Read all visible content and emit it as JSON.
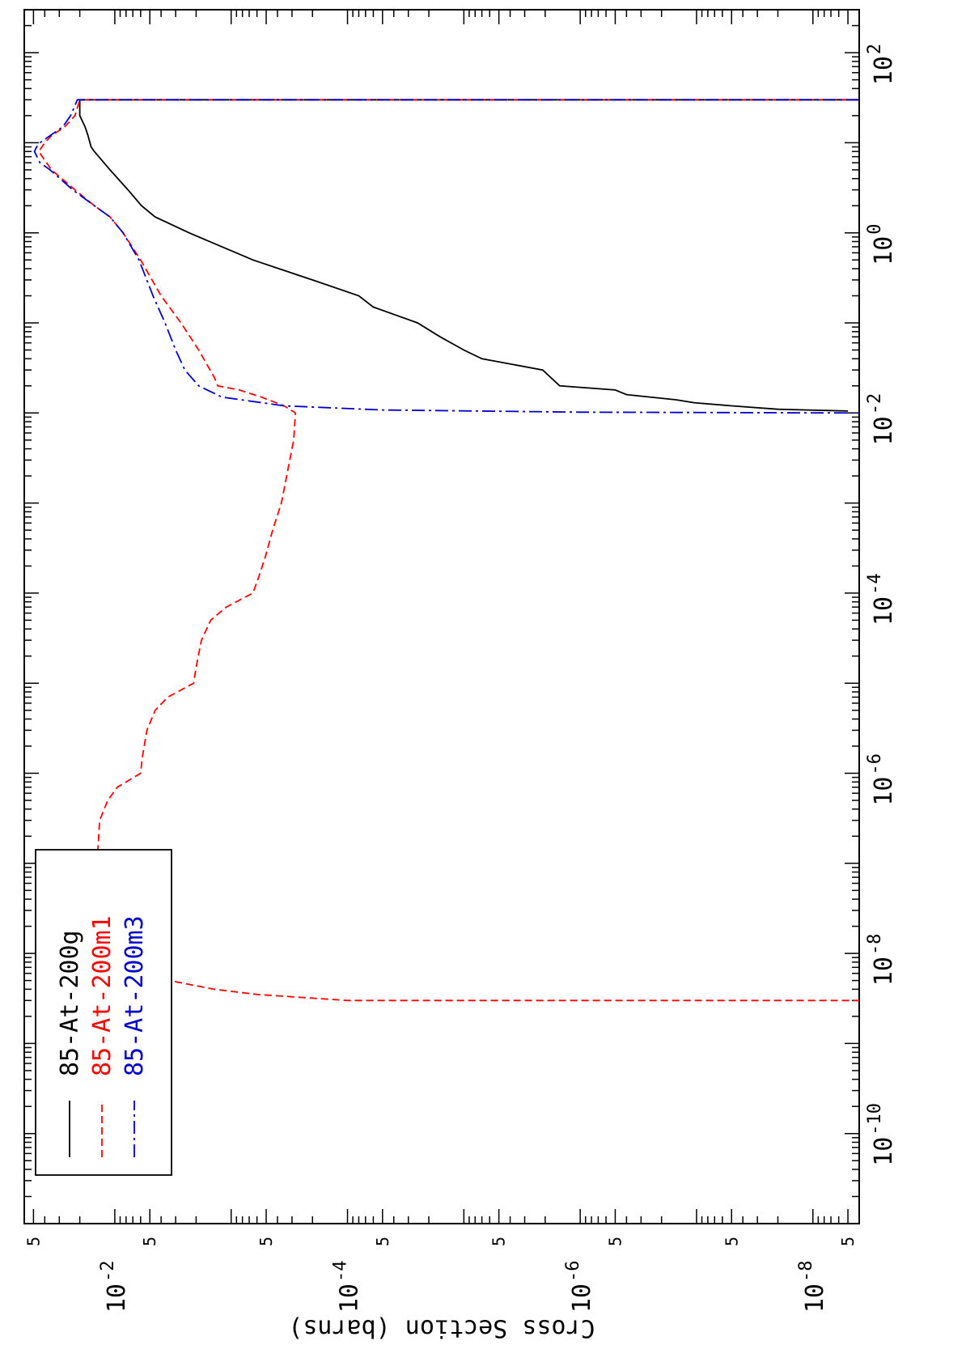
{
  "chart_data": {
    "type": "line",
    "orientation": "rotated-90-clockwise",
    "xlabel": "",
    "ylabel": "Cross Section (barns)",
    "x_scale": "log",
    "y_scale": "log",
    "xlim": [
      1e-11,
      300
    ],
    "ylim": [
      4e-09,
      0.06
    ],
    "x_ticks": [
      {
        "value": 1e-10,
        "base": "10",
        "exp": "-10"
      },
      {
        "value": 1e-08,
        "base": "10",
        "exp": "-8"
      },
      {
        "value": 1e-06,
        "base": "10",
        "exp": "-6"
      },
      {
        "value": 0.0001,
        "base": "10",
        "exp": "-4"
      },
      {
        "value": 0.01,
        "base": "10",
        "exp": "-2"
      },
      {
        "value": 1,
        "base": "10",
        "exp": "0"
      },
      {
        "value": 100,
        "base": "10",
        "exp": "2"
      }
    ],
    "y_ticks": [
      {
        "value": 0.01,
        "base": "10",
        "exp": "-2"
      },
      {
        "value": 0.0001,
        "base": "10",
        "exp": "-4"
      },
      {
        "value": 1e-06,
        "base": "10",
        "exp": "-6"
      },
      {
        "value": 1e-08,
        "base": "10",
        "exp": "-8"
      }
    ],
    "y_minor_labels": [
      {
        "value": 0.05,
        "label": "5"
      },
      {
        "value": 0.005,
        "label": "5"
      },
      {
        "value": 0.0005,
        "label": "5"
      },
      {
        "value": 5e-05,
        "label": "5"
      },
      {
        "value": 5e-06,
        "label": "5"
      },
      {
        "value": 5e-07,
        "label": "5"
      },
      {
        "value": 5e-08,
        "label": "5"
      },
      {
        "value": 5e-09,
        "label": "5"
      }
    ],
    "legend": {
      "placement": "bottom-left"
    },
    "series": [
      {
        "name": "85-At-200g",
        "color": "#000000",
        "dash": "solid",
        "points": [
          [
            30,
            4e-09
          ],
          [
            30,
            0.02
          ],
          [
            20,
            0.02
          ],
          [
            15,
            0.018
          ],
          [
            12,
            0.017
          ],
          [
            9,
            0.016
          ],
          [
            8,
            0.015
          ],
          [
            5,
            0.011
          ],
          [
            3,
            0.0077
          ],
          [
            2,
            0.0059
          ],
          [
            1.5,
            0.0045
          ],
          [
            1,
            0.0023
          ],
          [
            0.7,
            0.0012
          ],
          [
            0.5,
            0.00065
          ],
          [
            0.3,
            0.0002
          ],
          [
            0.2,
            8e-05
          ],
          [
            0.15,
            6e-05
          ],
          [
            0.1,
            2.5e-05
          ],
          [
            0.07,
            1.6e-05
          ],
          [
            0.05,
            1e-05
          ],
          [
            0.04,
            7e-06
          ],
          [
            0.03,
            2.1e-06
          ],
          [
            0.02,
            1.5e-06
          ],
          [
            0.018,
            5e-07
          ],
          [
            0.016,
            4e-07
          ],
          [
            0.014,
            1.5e-07
          ],
          [
            0.013,
            1.05e-07
          ],
          [
            0.012,
            5e-08
          ],
          [
            0.011,
            2e-08
          ],
          [
            0.0105,
            5e-09
          ]
        ]
      },
      {
        "name": "85-At-200m1",
        "color": "#ff0000",
        "dash": "dashed",
        "points": [
          [
            30,
            4e-09
          ],
          [
            30,
            0.02
          ],
          [
            20,
            0.022
          ],
          [
            15,
            0.027
          ],
          [
            12,
            0.035
          ],
          [
            10,
            0.04
          ],
          [
            8,
            0.045
          ],
          [
            7,
            0.042
          ],
          [
            5,
            0.035
          ],
          [
            3,
            0.022
          ],
          [
            2,
            0.015
          ],
          [
            1.5,
            0.011
          ],
          [
            1,
            0.0085
          ],
          [
            0.5,
            0.006
          ],
          [
            0.2,
            0.004
          ],
          [
            0.1,
            0.0027
          ],
          [
            0.05,
            0.0019
          ],
          [
            0.025,
            0.0014
          ],
          [
            0.02,
            0.0013
          ],
          [
            0.018,
            0.00085
          ],
          [
            0.015,
            0.00055
          ],
          [
            0.012,
            0.00035
          ],
          [
            0.01,
            0.00028
          ],
          [
            0.005,
            0.00029
          ],
          [
            0.001,
            0.00037
          ],
          [
            0.0005,
            0.00044
          ],
          [
            0.00025,
            0.00051
          ],
          [
            0.00015,
            0.00058
          ],
          [
            0.0001,
            0.00065
          ],
          [
            7e-05,
            0.0011
          ],
          [
            5e-05,
            0.0015
          ],
          [
            3e-05,
            0.0018
          ],
          [
            1.5e-05,
            0.002
          ],
          [
            1e-05,
            0.0021
          ],
          [
            7e-06,
            0.0035
          ],
          [
            5e-06,
            0.0045
          ],
          [
            3e-06,
            0.0053
          ],
          [
            1.5e-06,
            0.0058
          ],
          [
            1e-06,
            0.006
          ],
          [
            7e-07,
            0.0095
          ],
          [
            5e-07,
            0.0115
          ],
          [
            3e-07,
            0.0135
          ],
          [
            1e-07,
            0.0142
          ],
          [
            3e-08,
            0.0143
          ],
          [
            2e-08,
            0.0142
          ],
          [
            1.5e-08,
            0.013
          ],
          [
            1e-08,
            0.0105
          ],
          [
            7e-09,
            0.0065
          ],
          [
            5e-09,
            0.0034
          ],
          [
            4e-09,
            0.0014
          ],
          [
            3.5e-09,
            0.0006
          ],
          [
            3e-09,
            0.0001
          ],
          [
            3e-09,
            4e-09
          ]
        ]
      },
      {
        "name": "85-At-200m3",
        "color": "#0000cc",
        "dash": "dashdot",
        "points": [
          [
            30,
            4e-09
          ],
          [
            30,
            0.021
          ],
          [
            20,
            0.024
          ],
          [
            15,
            0.028
          ],
          [
            12,
            0.036
          ],
          [
            10,
            0.044
          ],
          [
            9,
            0.047
          ],
          [
            8,
            0.049
          ],
          [
            6,
            0.044
          ],
          [
            5,
            0.036
          ],
          [
            3,
            0.023
          ],
          [
            2,
            0.015
          ],
          [
            1.5,
            0.011
          ],
          [
            1,
            0.0085
          ],
          [
            0.5,
            0.0062
          ],
          [
            0.2,
            0.0047
          ],
          [
            0.1,
            0.0037
          ],
          [
            0.05,
            0.003
          ],
          [
            0.03,
            0.0025
          ],
          [
            0.02,
            0.0019
          ],
          [
            0.015,
            0.0012
          ],
          [
            0.012,
            0.00035
          ],
          [
            0.0108,
            5e-05
          ],
          [
            0.0102,
            1e-06
          ],
          [
            0.01,
            4e-09
          ]
        ]
      }
    ]
  }
}
